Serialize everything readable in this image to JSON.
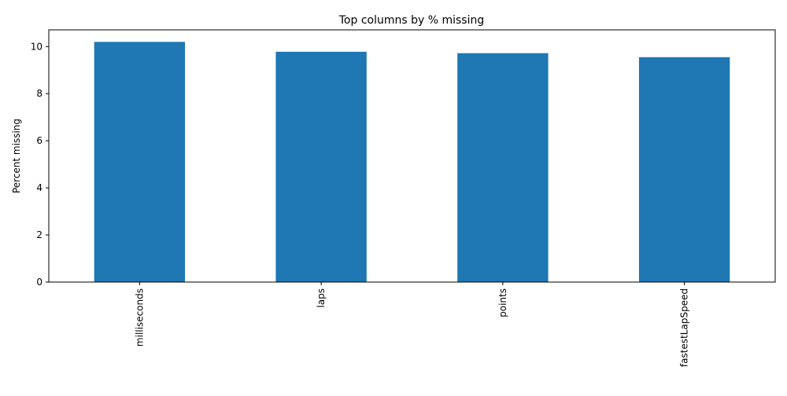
{
  "chart_data": {
    "type": "bar",
    "title": "Top columns by % missing",
    "xlabel": "",
    "ylabel": "Percent missing",
    "categories": [
      "milliseconds",
      "laps",
      "points",
      "fastestLapSpeed"
    ],
    "values": [
      10.2,
      9.78,
      9.72,
      9.55
    ],
    "ylim": [
      0,
      10.71
    ],
    "yticks": [
      0,
      2,
      4,
      6,
      8,
      10
    ],
    "xtick_rotation": "vertical",
    "grid": false,
    "legend": "none",
    "bar_color": "#1f77b4"
  }
}
